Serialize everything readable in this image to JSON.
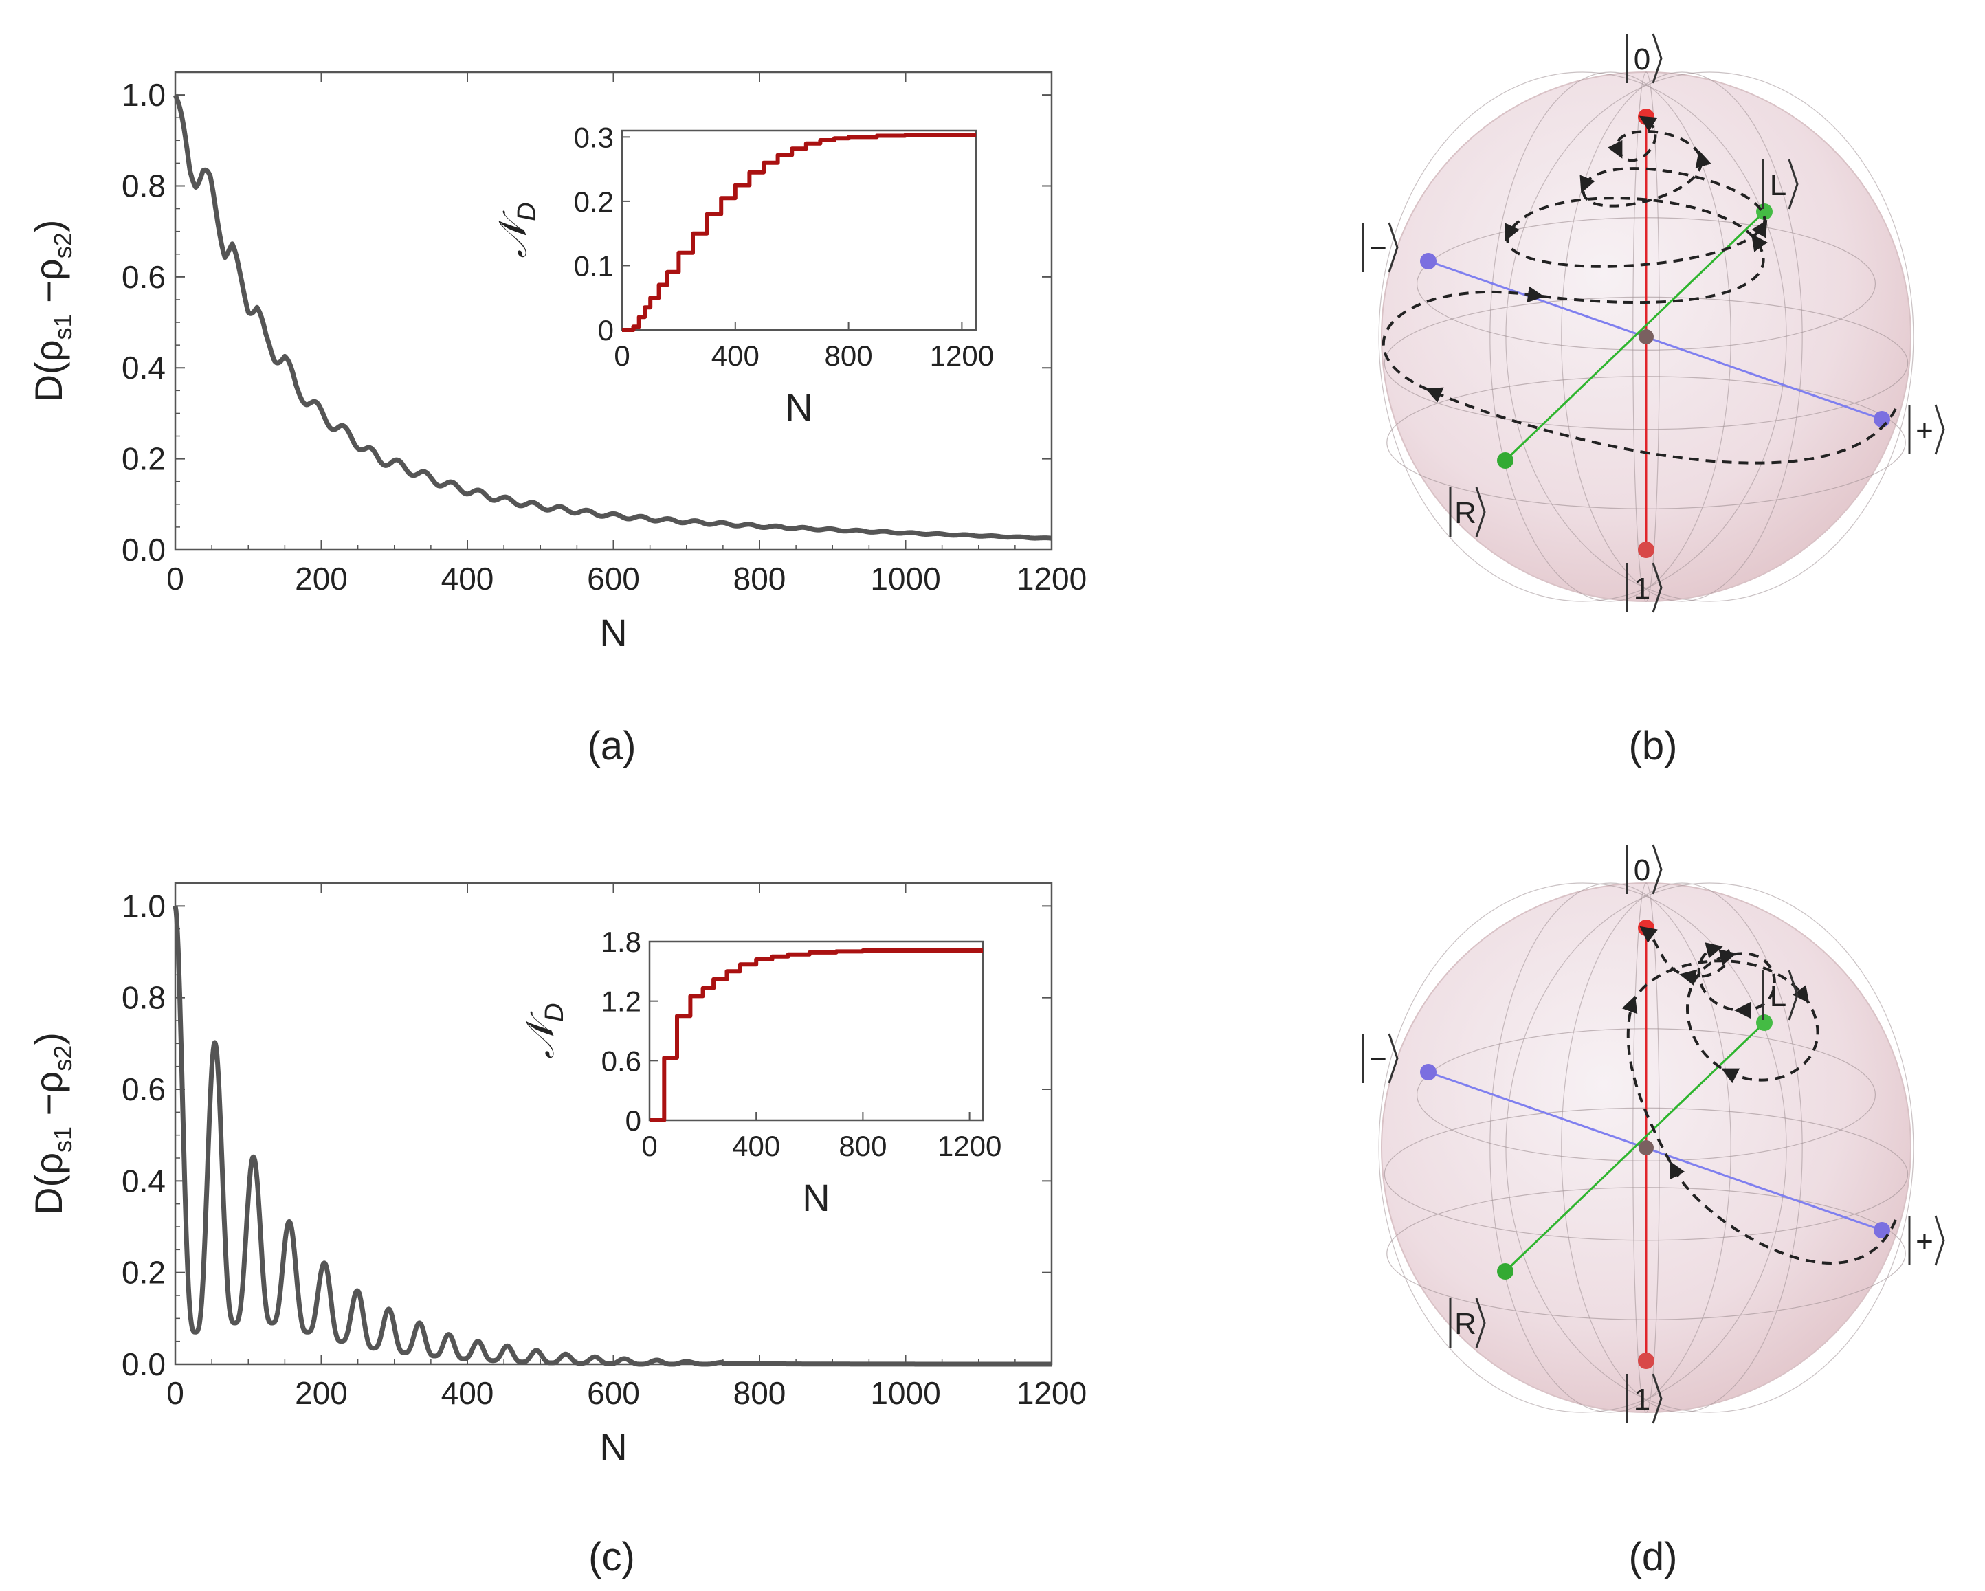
{
  "panels": [
    {
      "label": "(a)"
    },
    {
      "label": "(b)"
    },
    {
      "label": "(c)"
    },
    {
      "label": "(d)"
    }
  ],
  "chart_data": [
    {
      "panel": "a",
      "type": "line",
      "ylabel": "D(ρs1 − ρs2)",
      "ylabel_parts": {
        "main": "D(ρ",
        "sub1": "s1",
        "minus": " −ρ",
        "sub2": "s2",
        "close": ")"
      },
      "xlabel": "N",
      "xlim": [
        0,
        1200
      ],
      "ylim": [
        0,
        1.05
      ],
      "xticks": [
        "0",
        "200",
        "400",
        "600",
        "800",
        "1000",
        "1200"
      ],
      "yticks": [
        "0.0",
        "0.2",
        "0.4",
        "0.6",
        "0.8",
        "1.0"
      ],
      "color": "#555555",
      "series": [
        {
          "name": "D",
          "x": [
            0,
            5,
            10,
            15,
            20,
            28,
            38,
            48,
            58,
            68,
            78,
            88,
            100,
            112,
            124,
            136,
            150,
            165,
            180,
            200,
            220,
            240,
            260,
            280,
            300,
            330,
            360,
            400,
            450,
            500,
            550,
            600,
            650,
            700,
            800,
            900,
            1000,
            1100,
            1200
          ],
          "y": [
            1.0,
            0.96,
            0.92,
            0.88,
            0.84,
            0.82,
            0.83,
            0.8,
            0.73,
            0.66,
            0.66,
            0.6,
            0.54,
            0.53,
            0.46,
            0.43,
            0.42,
            0.36,
            0.33,
            0.3,
            0.27,
            0.25,
            0.22,
            0.2,
            0.19,
            0.17,
            0.15,
            0.13,
            0.11,
            0.095,
            0.085,
            0.075,
            0.068,
            0.062,
            0.052,
            0.044,
            0.037,
            0.031,
            0.025
          ],
          "oscillation": {
            "period": 37,
            "amplitude": 0.025
          }
        }
      ],
      "inset": {
        "type": "line",
        "ylabel": "𝒩D",
        "ylabel_parts": {
          "main": "𝒩",
          "sub": "D"
        },
        "xlabel": "N",
        "xlim": [
          0,
          1250
        ],
        "ylim": [
          0,
          0.31
        ],
        "xticks": [
          "0",
          "400",
          "800",
          "1200"
        ],
        "yticks": [
          "0",
          "0.1",
          "0.2",
          "0.3"
        ],
        "color": "#aa1111",
        "series": [
          {
            "name": "ND",
            "x": [
              0,
              20,
              40,
              60,
              80,
              100,
              130,
              160,
              200,
              250,
              300,
              350,
              400,
              450,
              500,
              550,
              600,
              650,
              700,
              750,
              800,
              900,
              1000,
              1100,
              1250
            ],
            "y": [
              0,
              0,
              0.005,
              0.02,
              0.035,
              0.05,
              0.07,
              0.09,
              0.12,
              0.15,
              0.18,
              0.205,
              0.225,
              0.245,
              0.26,
              0.272,
              0.282,
              0.29,
              0.295,
              0.298,
              0.3,
              0.302,
              0.303,
              0.303,
              0.303
            ]
          }
        ]
      }
    },
    {
      "panel": "c",
      "type": "line",
      "ylabel": "D(ρs1 − ρs2)",
      "ylabel_parts": {
        "main": "D(ρ",
        "sub1": "s1",
        "minus": " −ρ",
        "sub2": "s2",
        "close": ")"
      },
      "xlabel": "N",
      "xlim": [
        0,
        1200
      ],
      "ylim": [
        0,
        1.05
      ],
      "xticks": [
        "0",
        "200",
        "400",
        "600",
        "800",
        "1000",
        "1200"
      ],
      "yticks": [
        "0.0",
        "0.2",
        "0.4",
        "0.6",
        "0.8",
        "1.0"
      ],
      "color": "#555555",
      "series": [
        {
          "name": "D",
          "peaks_x": [
            0,
            55,
            108,
            157,
            205,
            250,
            293,
            335,
            375,
            415,
            455,
            495,
            535,
            575,
            615,
            660,
            700,
            750
          ],
          "peaks_y": [
            1.0,
            0.7,
            0.45,
            0.31,
            0.22,
            0.16,
            0.12,
            0.09,
            0.065,
            0.05,
            0.04,
            0.03,
            0.022,
            0.016,
            0.012,
            0.009,
            0.006,
            0.004
          ],
          "troughs_y": [
            0.07,
            0.09,
            0.09,
            0.07,
            0.05,
            0.035,
            0.025,
            0.018,
            0.012,
            0.008,
            0.005,
            0.003,
            0.002,
            0.001,
            0.0,
            0.0,
            0.0
          ]
        }
      ],
      "inset": {
        "type": "line",
        "ylabel": "𝒩D",
        "ylabel_parts": {
          "main": "𝒩",
          "sub": "D"
        },
        "xlabel": "N",
        "xlim": [
          0,
          1250
        ],
        "ylim": [
          0,
          1.8
        ],
        "xticks": [
          "0",
          "400",
          "800",
          "1200"
        ],
        "yticks": [
          "0",
          "0.6",
          "1.2",
          "1.8"
        ],
        "color": "#aa1111",
        "series": [
          {
            "name": "ND",
            "x": [
              0,
              30,
              32,
              55,
              58,
              100,
              103,
              150,
              153,
              200,
              240,
              290,
              340,
              400,
              460,
              520,
              600,
              700,
              800,
              900,
              1000,
              1100,
              1250
            ],
            "y": [
              0,
              0,
              0,
              0.63,
              0.63,
              0.63,
              1.05,
              1.05,
              1.25,
              1.33,
              1.42,
              1.5,
              1.57,
              1.62,
              1.65,
              1.67,
              1.69,
              1.7,
              1.71,
              1.71,
              1.71,
              1.71,
              1.71
            ]
          }
        ]
      }
    }
  ],
  "bloch": [
    {
      "panel": "b",
      "kets": {
        "zero": "0",
        "one": "1",
        "plus": "+",
        "minus": "−",
        "L": "L",
        "R": "R"
      }
    },
    {
      "panel": "d",
      "kets": {
        "zero": "0",
        "one": "1",
        "plus": "+",
        "minus": "−",
        "L": "L",
        "R": "R"
      }
    }
  ],
  "colors": {
    "z_axis": "#e0242a",
    "x_axis": "#7f7fef",
    "y_axis": "#2fb52f",
    "trajectory": "#222222",
    "sphere": "#f0e4e6"
  }
}
